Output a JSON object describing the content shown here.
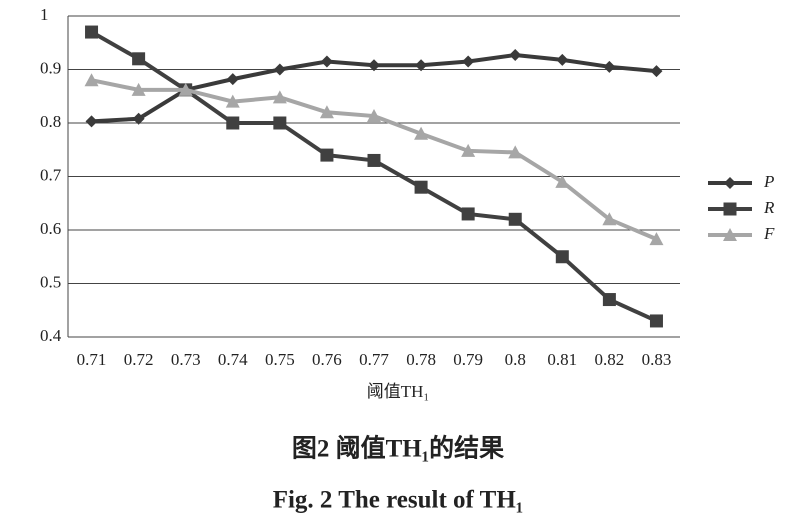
{
  "chart_data": {
    "type": "line",
    "categories": [
      "0.71",
      "0.72",
      "0.73",
      "0.74",
      "0.75",
      "0.76",
      "0.77",
      "0.78",
      "0.79",
      "0.8",
      "0.81",
      "0.82",
      "0.83"
    ],
    "series": [
      {
        "name": "P",
        "color": "#3a3a3a",
        "marker": "diamond",
        "values": [
          0.803,
          0.808,
          0.862,
          0.882,
          0.9,
          0.915,
          0.908,
          0.908,
          0.915,
          0.927,
          0.918,
          0.905,
          0.897
        ]
      },
      {
        "name": "R",
        "color": "#404040",
        "marker": "square",
        "values": [
          0.97,
          0.92,
          0.862,
          0.8,
          0.8,
          0.74,
          0.73,
          0.68,
          0.63,
          0.62,
          0.55,
          0.47,
          0.43
        ]
      },
      {
        "name": "F",
        "color": "#a6a6a6",
        "marker": "triangle",
        "values": [
          0.88,
          0.862,
          0.862,
          0.84,
          0.848,
          0.82,
          0.813,
          0.78,
          0.748,
          0.745,
          0.69,
          0.62,
          0.583
        ]
      }
    ],
    "ylim": [
      0.4,
      1
    ],
    "yticks": [
      0.4,
      0.5,
      0.6,
      0.7,
      0.8,
      0.9,
      1
    ],
    "grid": true,
    "legend": "right",
    "xlabel": "阈值TH₁",
    "caption_cn": "图2  阈值TH₁的结果",
    "caption_en": "Fig. 2  The result of TH₁"
  }
}
